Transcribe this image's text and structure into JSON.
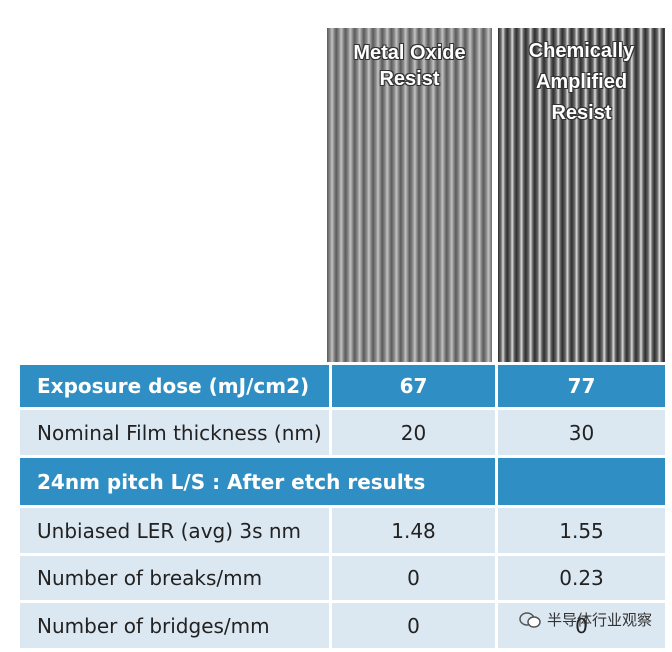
{
  "images": [
    {
      "label_lines": [
        "Metal Oxide",
        "Resist"
      ]
    },
    {
      "label_lines": [
        "Chemically",
        "Amplified",
        "Resist"
      ]
    }
  ],
  "table": {
    "rows": [
      [
        "Exposure dose (mJ/cm2)",
        "67",
        "77"
      ],
      [
        "Nominal Film thickness (nm)",
        "20",
        "30"
      ],
      [
        "24nm pitch L/S : After etch results"
      ],
      [
        "Unbiased LER (avg) 3s nm",
        "1.48",
        "1.55"
      ],
      [
        "Number of breaks/mm",
        "0",
        "0.23"
      ],
      [
        "Number of bridges/mm",
        "0",
        "0"
      ]
    ]
  },
  "watermark": "半导体行业观察"
}
